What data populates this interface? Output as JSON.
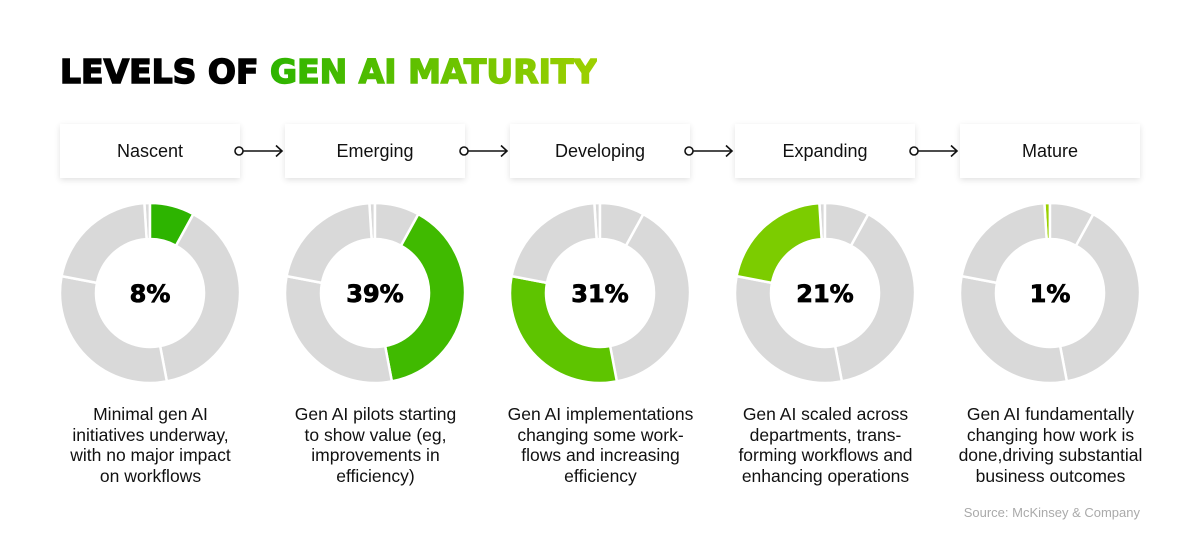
{
  "title": {
    "part1": "LEVELS OF ",
    "part2": "GEN AI MATURITY"
  },
  "source": "Source: McKinsey & Company",
  "colors": {
    "gray": "#d9d9d9",
    "title_gradient": [
      "#2db400",
      "#9ed000"
    ]
  },
  "chart_data": {
    "type": "pie",
    "variant": "donut-small-multiples",
    "categories": [
      "Nascent",
      "Emerging",
      "Developing",
      "Expanding",
      "Mature"
    ],
    "values": [
      8,
      39,
      31,
      21,
      1
    ],
    "unit": "%",
    "segment_order_clockwise": [
      "Mature",
      "Nascent",
      "Emerging",
      "Developing",
      "Expanding"
    ],
    "highlight_colors": [
      "#2db400",
      "#40ba00",
      "#5ec400",
      "#7ccc00",
      "#9ad000"
    ],
    "labels": [
      "8%",
      "39%",
      "31%",
      "21%",
      "1%"
    ],
    "descriptions": [
      [
        "Minimal gen AI",
        "initiatives underway,",
        "with no major impact",
        "on workflows"
      ],
      [
        "Gen AI pilots starting",
        "to show value (eg,",
        "improvements in",
        "efficiency)"
      ],
      [
        "Gen AI implementations",
        "changing some work-",
        "flows and increasing",
        "efficiency"
      ],
      [
        "Gen AI scaled across",
        "departments, trans-",
        "forming workflows and",
        "enhancing operations"
      ],
      [
        "Gen AI fundamentally",
        "changing how work is",
        "done,driving substantial",
        "business outcomes"
      ]
    ]
  }
}
